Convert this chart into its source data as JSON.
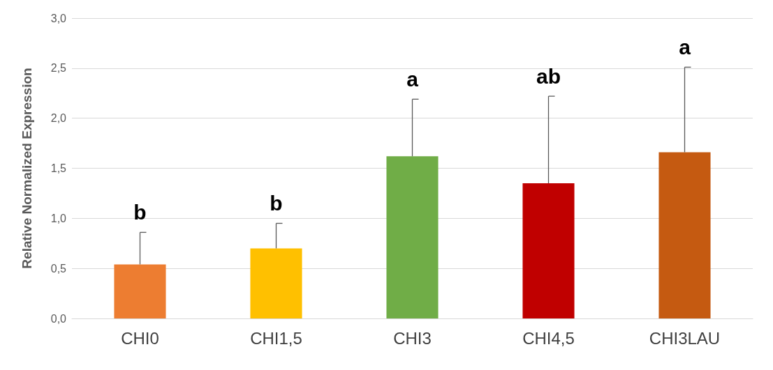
{
  "chart_data": {
    "type": "bar",
    "ylabel": "Relative Normalized Expression",
    "categories": [
      "CHI0",
      "CHI1,5",
      "CHI3",
      "CHI4,5",
      "CHI3LAU"
    ],
    "values": [
      0.54,
      0.7,
      1.62,
      1.35,
      1.66
    ],
    "colors": [
      "#ed7d31",
      "#ffc000",
      "#70ad47",
      "#c00000",
      "#c55a11"
    ],
    "errors": [
      [
        0.54,
        0.86
      ],
      [
        0.7,
        0.95
      ],
      [
        1.62,
        2.19
      ],
      [
        1.35,
        2.22
      ],
      [
        1.66,
        2.51
      ]
    ],
    "annotations": [
      {
        "text": "b",
        "x": "CHI0",
        "y": 0.86
      },
      {
        "text": "b",
        "x": "CHI1,5",
        "y": 0.95
      },
      {
        "text": "a",
        "x": "CHI3",
        "y": 2.19
      },
      {
        "text": "ab",
        "x": "CHI4,5",
        "y": 2.22
      },
      {
        "text": "a",
        "x": "CHI3LAU",
        "y": 2.51
      }
    ],
    "ylim": [
      0,
      3
    ],
    "yticks": [
      {
        "value": 0,
        "label": "0,0"
      },
      {
        "value": 0.5,
        "label": "0,5"
      },
      {
        "value": 1,
        "label": "1,0"
      },
      {
        "value": 1.5,
        "label": "1,5"
      },
      {
        "value": 2,
        "label": "2,0"
      },
      {
        "value": 2.5,
        "label": "2,5"
      },
      {
        "value": 3,
        "label": "3,0"
      }
    ],
    "grid": "y"
  }
}
